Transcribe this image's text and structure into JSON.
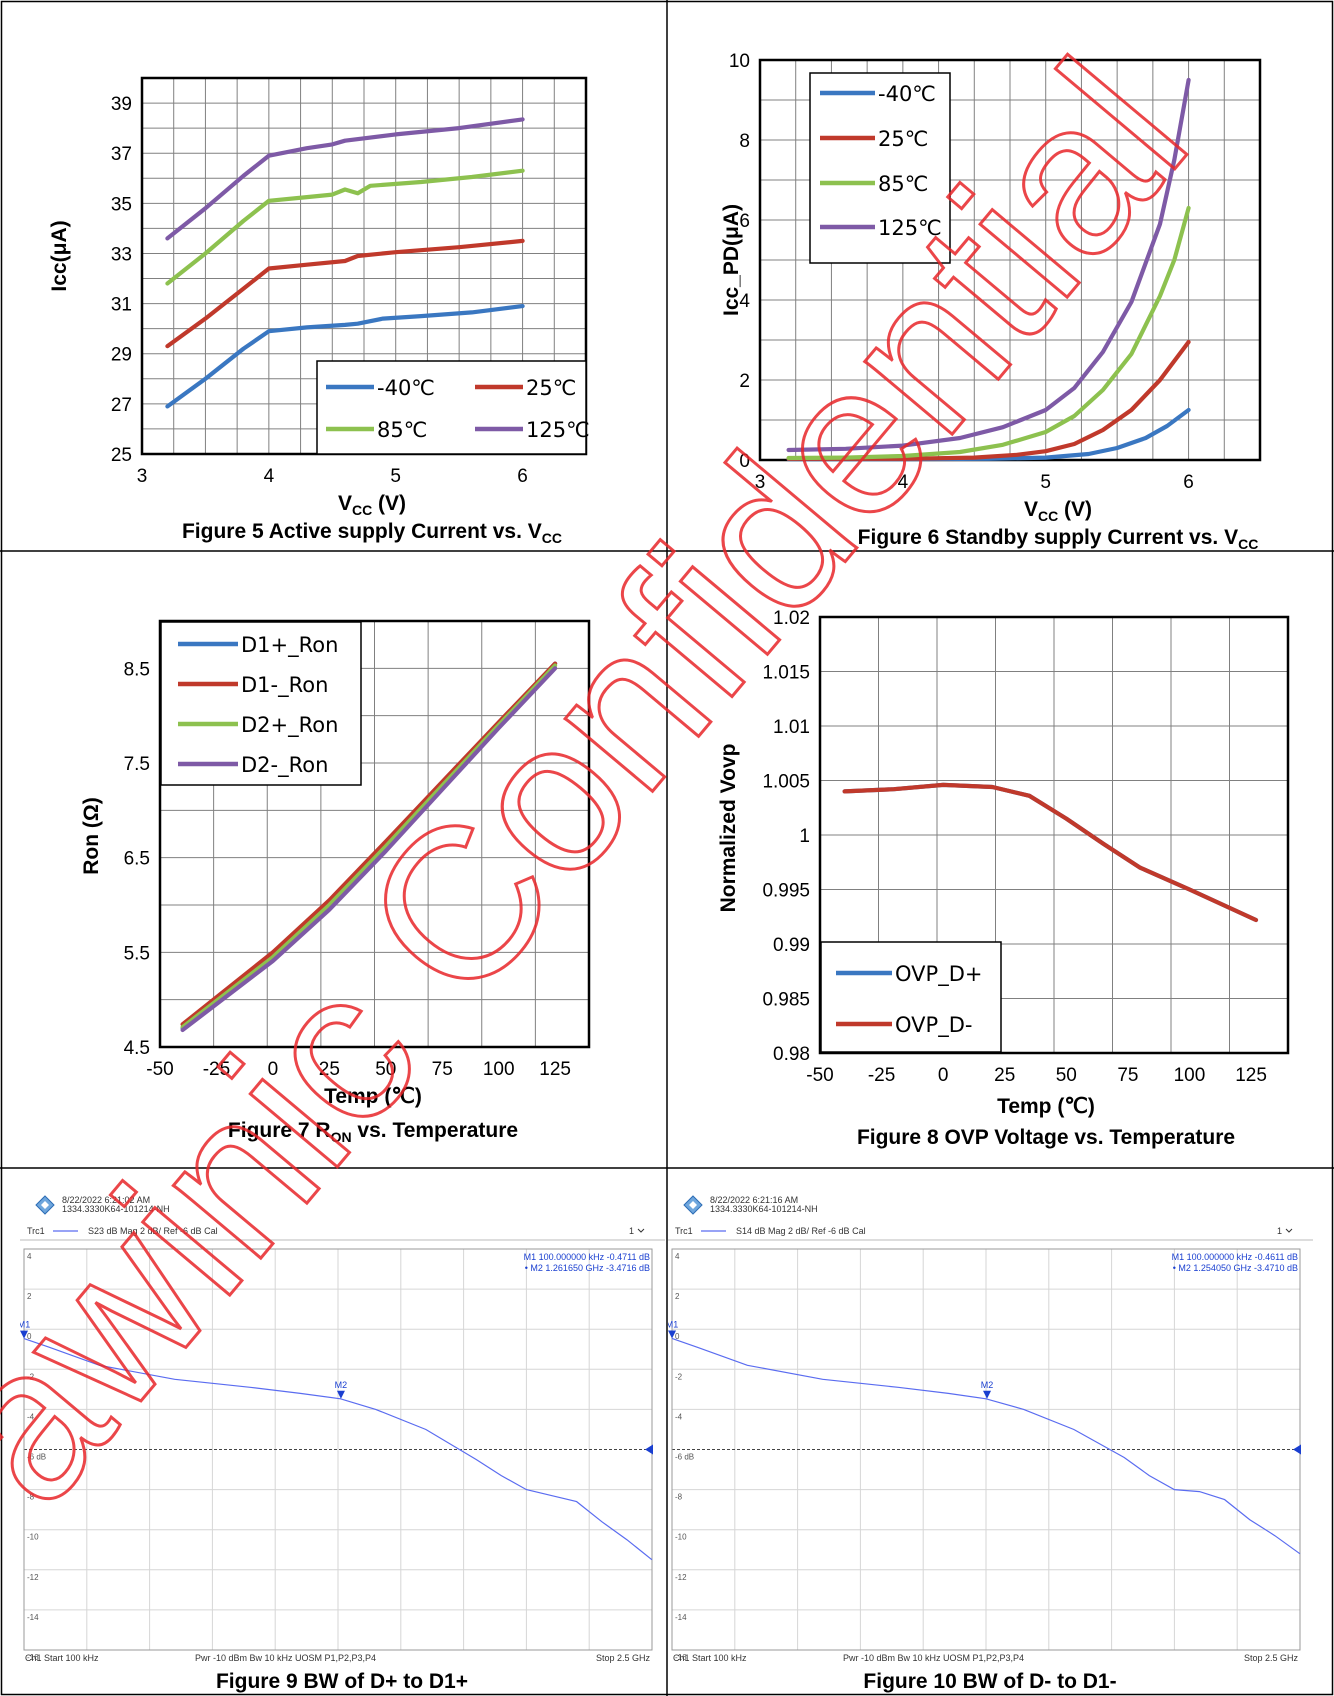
{
  "watermark": "awinic Confidential",
  "chart_data": [
    {
      "id": "fig5",
      "type": "line",
      "caption": "Figure 5  Active supply Current vs. V",
      "caption_sub": "CC",
      "xlabel": "V",
      "xlabel_sub": "CC",
      "xlabel_suffix": " (V)",
      "ylabel": "Icc(μA)",
      "xlim": [
        3,
        6.5
      ],
      "ylim": [
        25,
        40
      ],
      "xticks": [
        3,
        4,
        5,
        6
      ],
      "yticks": [
        25,
        27,
        29,
        31,
        33,
        35,
        37,
        39
      ],
      "legend_placement": "bottom-right",
      "series": [
        {
          "name": "-40℃",
          "color": "#3a77c1",
          "points": [
            [
              3.2,
              26.9
            ],
            [
              3.5,
              28.0
            ],
            [
              3.8,
              29.2
            ],
            [
              4.0,
              29.9
            ],
            [
              4.3,
              30.05
            ],
            [
              4.6,
              30.15
            ],
            [
              4.7,
              30.2
            ],
            [
              4.9,
              30.4
            ],
            [
              5.2,
              30.5
            ],
            [
              5.6,
              30.65
            ],
            [
              6.0,
              30.9
            ]
          ]
        },
        {
          "name": "25℃",
          "color": "#c0392b",
          "points": [
            [
              3.2,
              29.3
            ],
            [
              3.5,
              30.4
            ],
            [
              3.8,
              31.6
            ],
            [
              4.0,
              32.4
            ],
            [
              4.3,
              32.55
            ],
            [
              4.6,
              32.7
            ],
            [
              4.7,
              32.9
            ],
            [
              5.0,
              33.05
            ],
            [
              5.5,
              33.25
            ],
            [
              6.0,
              33.5
            ]
          ]
        },
        {
          "name": "85℃",
          "color": "#8dc14f",
          "points": [
            [
              3.2,
              31.8
            ],
            [
              3.5,
              33.0
            ],
            [
              3.8,
              34.3
            ],
            [
              4.0,
              35.1
            ],
            [
              4.3,
              35.25
            ],
            [
              4.5,
              35.35
            ],
            [
              4.6,
              35.55
            ],
            [
              4.7,
              35.4
            ],
            [
              4.8,
              35.7
            ],
            [
              5.2,
              35.85
            ],
            [
              5.6,
              36.05
            ],
            [
              6.0,
              36.3
            ]
          ]
        },
        {
          "name": "125℃",
          "color": "#7e5aa6",
          "points": [
            [
              3.2,
              33.6
            ],
            [
              3.5,
              34.8
            ],
            [
              3.8,
              36.1
            ],
            [
              4.0,
              36.9
            ],
            [
              4.3,
              37.2
            ],
            [
              4.5,
              37.35
            ],
            [
              4.6,
              37.5
            ],
            [
              5.0,
              37.75
            ],
            [
              5.5,
              38.0
            ],
            [
              6.0,
              38.35
            ]
          ]
        }
      ]
    },
    {
      "id": "fig6",
      "type": "line",
      "caption": "Figure 6  Standby supply Current vs. V",
      "caption_sub": "CC",
      "xlabel": "V",
      "xlabel_sub": "CC",
      "xlabel_suffix": " (V)",
      "ylabel": "Icc_PD(μA)",
      "xlim": [
        3,
        6.5
      ],
      "ylim": [
        0,
        10
      ],
      "xticks": [
        3,
        4,
        5,
        6
      ],
      "yticks": [
        0,
        2,
        4,
        6,
        8,
        10
      ],
      "legend_placement": "top-left",
      "series": [
        {
          "name": "-40℃",
          "color": "#3a77c1",
          "points": [
            [
              3.2,
              0.02
            ],
            [
              4.0,
              0.02
            ],
            [
              4.6,
              0.03
            ],
            [
              5.0,
              0.06
            ],
            [
              5.3,
              0.15
            ],
            [
              5.5,
              0.3
            ],
            [
              5.7,
              0.55
            ],
            [
              5.85,
              0.85
            ],
            [
              6.0,
              1.25
            ]
          ]
        },
        {
          "name": "25℃",
          "color": "#c0392b",
          "points": [
            [
              3.2,
              0.03
            ],
            [
              4.0,
              0.03
            ],
            [
              4.5,
              0.06
            ],
            [
              4.8,
              0.13
            ],
            [
              5.0,
              0.22
            ],
            [
              5.2,
              0.4
            ],
            [
              5.4,
              0.75
            ],
            [
              5.6,
              1.25
            ],
            [
              5.8,
              2.0
            ],
            [
              6.0,
              2.95
            ]
          ]
        },
        {
          "name": "85℃",
          "color": "#8dc14f",
          "points": [
            [
              3.2,
              0.05
            ],
            [
              3.6,
              0.06
            ],
            [
              4.0,
              0.1
            ],
            [
              4.4,
              0.2
            ],
            [
              4.7,
              0.38
            ],
            [
              5.0,
              0.7
            ],
            [
              5.2,
              1.1
            ],
            [
              5.4,
              1.75
            ],
            [
              5.6,
              2.65
            ],
            [
              5.8,
              4.1
            ],
            [
              5.9,
              5.0
            ],
            [
              6.0,
              6.3
            ]
          ]
        },
        {
          "name": "125℃",
          "color": "#7e5aa6",
          "points": [
            [
              3.2,
              0.25
            ],
            [
              3.6,
              0.28
            ],
            [
              4.0,
              0.36
            ],
            [
              4.4,
              0.55
            ],
            [
              4.7,
              0.82
            ],
            [
              5.0,
              1.25
            ],
            [
              5.2,
              1.8
            ],
            [
              5.4,
              2.7
            ],
            [
              5.6,
              3.95
            ],
            [
              5.8,
              5.9
            ],
            [
              5.9,
              7.5
            ],
            [
              6.0,
              9.5
            ]
          ]
        }
      ]
    },
    {
      "id": "fig7",
      "type": "line",
      "caption": "Figure 7  R",
      "caption_sub": "ON",
      "caption_suffix": " vs. Temperature",
      "xlabel": "Temp (℃)",
      "ylabel": "Ron (Ω)",
      "xlim": [
        -50,
        140
      ],
      "ylim": [
        4.5,
        9.0
      ],
      "xticks": [
        -50,
        -25,
        0,
        25,
        50,
        75,
        100,
        125
      ],
      "yticks": [
        4.5,
        5.5,
        6.5,
        7.5,
        8.5
      ],
      "legend_placement": "top-left",
      "series": [
        {
          "name": "D1+_Ron",
          "color": "#3a77c1",
          "points": [
            [
              -40,
              4.7
            ],
            [
              0,
              5.43
            ],
            [
              25,
              5.98
            ],
            [
              50,
              6.6
            ],
            [
              75,
              7.25
            ],
            [
              100,
              7.9
            ],
            [
              125,
              8.55
            ]
          ]
        },
        {
          "name": "D1-_Ron",
          "color": "#c0392b",
          "points": [
            [
              -40,
              4.74
            ],
            [
              0,
              5.5
            ],
            [
              25,
              6.05
            ],
            [
              50,
              6.67
            ],
            [
              75,
              7.3
            ],
            [
              100,
              7.93
            ],
            [
              125,
              8.55
            ]
          ]
        },
        {
          "name": "D2+_Ron",
          "color": "#8dc14f",
          "points": [
            [
              -40,
              4.71
            ],
            [
              0,
              5.45
            ],
            [
              25,
              6.0
            ],
            [
              50,
              6.62
            ],
            [
              75,
              7.26
            ],
            [
              100,
              7.9
            ],
            [
              125,
              8.53
            ]
          ]
        },
        {
          "name": "D2-_Ron",
          "color": "#7e5aa6",
          "points": [
            [
              -40,
              4.68
            ],
            [
              0,
              5.41
            ],
            [
              25,
              5.95
            ],
            [
              50,
              6.57
            ],
            [
              75,
              7.22
            ],
            [
              100,
              7.87
            ],
            [
              125,
              8.5
            ]
          ]
        }
      ]
    },
    {
      "id": "fig8",
      "type": "line",
      "caption": "Figure 8  OVP Voltage vs. Temperature",
      "xlabel": "Temp (℃)",
      "ylabel": "Normalized Vovp",
      "xlim": [
        -50,
        140
      ],
      "ylim": [
        0.98,
        1.02
      ],
      "xticks": [
        -50,
        -25,
        0,
        25,
        50,
        75,
        100,
        125
      ],
      "yticks": [
        0.98,
        0.985,
        0.99,
        0.995,
        1,
        1.005,
        1.01,
        1.015,
        1.02
      ],
      "legend_placement": "bottom-left",
      "series": [
        {
          "name": "OVP_D+",
          "color": "#3a77c1",
          "points": [
            [
              -40,
              1.004
            ],
            [
              -20,
              1.0042
            ],
            [
              0,
              1.0046
            ],
            [
              20,
              1.0044
            ],
            [
              35,
              1.0036
            ],
            [
              50,
              1.0015
            ],
            [
              65,
              0.9992
            ],
            [
              80,
              0.997
            ],
            [
              100,
              0.995
            ],
            [
              127,
              0.9922
            ]
          ]
        },
        {
          "name": "OVP_D-",
          "color": "#c0392b",
          "points": [
            [
              -40,
              1.004
            ],
            [
              -20,
              1.0042
            ],
            [
              0,
              1.0046
            ],
            [
              20,
              1.0044
            ],
            [
              35,
              1.0036
            ],
            [
              50,
              1.0015
            ],
            [
              65,
              0.9992
            ],
            [
              80,
              0.997
            ],
            [
              100,
              0.995
            ],
            [
              127,
              0.9922
            ]
          ]
        }
      ]
    },
    {
      "id": "fig9",
      "type": "line",
      "caption": "Figure 9    BW of D+ to D1+",
      "timestamp": "8/22/2022 6:21:02 AM",
      "instrument": "1334.3330K64-101214-NH",
      "trace_header": [
        "Trc1",
        "S23  dB Mag  2 dB/ Ref -6 dB  Cal"
      ],
      "channel": "1",
      "markers": [
        {
          "label": "M1",
          "text": "M1  100.000000  kHz  -0.4711  dB"
        },
        {
          "label": "M2",
          "text": "• M2    1.261650  GHz  -3.4716  dB"
        }
      ],
      "footer": {
        "left": "Ch1  Start  100 kHz",
        "mid": "Pwr  -10 dBm  Bw  10 kHz  UOSM P1,P2,P3,P4",
        "right": "Stop  2.5 GHz"
      },
      "yticks": [
        4,
        2,
        0,
        -2,
        -4,
        -6,
        -8,
        -10,
        -12,
        -14,
        -16
      ],
      "ref_label": "-6 dB",
      "xlim": [
        0,
        2.5
      ],
      "ylim": [
        -16,
        4
      ],
      "series": [
        {
          "name": "S23",
          "color": "#5a6cf0",
          "points": [
            [
              0.0001,
              -0.47
            ],
            [
              0.1,
              -0.9
            ],
            [
              0.3,
              -1.8
            ],
            [
              0.6,
              -2.5
            ],
            [
              0.9,
              -2.9
            ],
            [
              1.1,
              -3.2
            ],
            [
              1.26,
              -3.47
            ],
            [
              1.4,
              -4.0
            ],
            [
              1.6,
              -5.0
            ],
            [
              1.8,
              -6.5
            ],
            [
              1.9,
              -7.3
            ],
            [
              2.0,
              -8.0
            ],
            [
              2.1,
              -8.3
            ],
            [
              2.2,
              -8.6
            ],
            [
              2.3,
              -9.6
            ],
            [
              2.4,
              -10.5
            ],
            [
              2.5,
              -11.5
            ]
          ]
        }
      ],
      "marker_points": [
        {
          "label": "M2",
          "x": 1.26165,
          "y": -3.4716
        },
        {
          "label": "M1",
          "x": 0.0001,
          "y": -0.4711
        }
      ]
    },
    {
      "id": "fig10",
      "type": "line",
      "caption": "Figure 10    BW of D- to D1-",
      "timestamp": "8/22/2022 6:21:16 AM",
      "instrument": "1334.3330K64-101214-NH",
      "trace_header": [
        "Trc1",
        "S14  dB Mag  2 dB/ Ref -6 dB  Cal"
      ],
      "channel": "1",
      "markers": [
        {
          "label": "M1",
          "text": "M1  100.000000  kHz  -0.4611  dB"
        },
        {
          "label": "M2",
          "text": "• M2    1.254050  GHz  -3.4710  dB"
        }
      ],
      "footer": {
        "left": "Ch1  Start  100 kHz",
        "mid": "Pwr  -10 dBm  Bw  10 kHz  UOSM P1,P2,P3,P4",
        "right": "Stop  2.5 GHz"
      },
      "yticks": [
        4,
        2,
        0,
        -2,
        -4,
        -6,
        -8,
        -10,
        -12,
        -14,
        -16
      ],
      "ref_label": "-6 dB",
      "xlim": [
        0,
        2.5
      ],
      "ylim": [
        -16,
        4
      ],
      "series": [
        {
          "name": "S14",
          "color": "#5a6cf0",
          "points": [
            [
              0.0001,
              -0.46
            ],
            [
              0.1,
              -0.9
            ],
            [
              0.3,
              -1.8
            ],
            [
              0.6,
              -2.5
            ],
            [
              0.9,
              -2.9
            ],
            [
              1.1,
              -3.2
            ],
            [
              1.25,
              -3.47
            ],
            [
              1.4,
              -4.0
            ],
            [
              1.6,
              -5.0
            ],
            [
              1.8,
              -6.4
            ],
            [
              1.9,
              -7.3
            ],
            [
              2.0,
              -8.0
            ],
            [
              2.1,
              -8.1
            ],
            [
              2.2,
              -8.5
            ],
            [
              2.3,
              -9.5
            ],
            [
              2.4,
              -10.3
            ],
            [
              2.5,
              -11.2
            ]
          ]
        }
      ],
      "marker_points": [
        {
          "label": "M2",
          "x": 1.25405,
          "y": -3.471
        },
        {
          "label": "M1",
          "x": 0.0001,
          "y": -0.4611
        }
      ]
    }
  ]
}
